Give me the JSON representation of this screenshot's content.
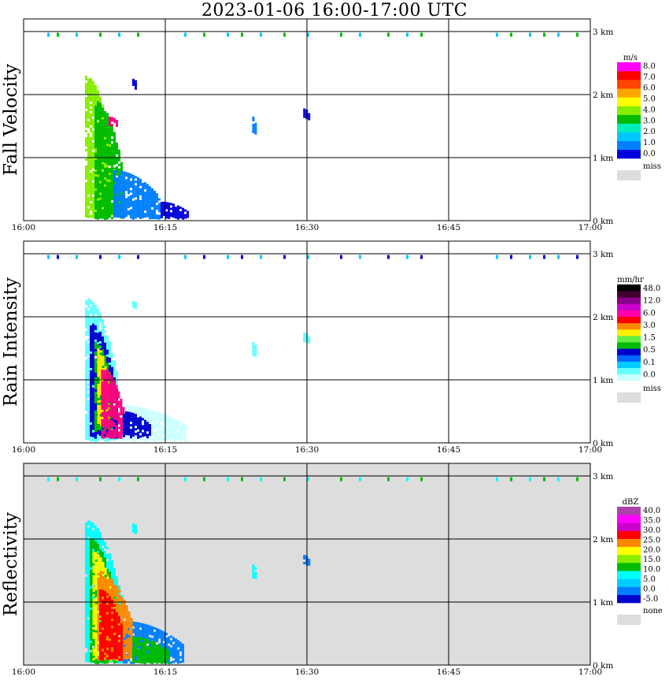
{
  "title": "2023-01-06  16:00-17:00 UTC",
  "chart_data": [
    {
      "type": "heatmap",
      "title": "Fall Velocity",
      "x_ticks": [
        "16:00",
        "16:15",
        "16:30",
        "16:45",
        "17:00"
      ],
      "y_ticks": [
        "0 km",
        "1 km",
        "2 km",
        "3 km"
      ],
      "ylim": [
        0,
        3
      ],
      "background": "#ffffff",
      "colorbar": {
        "unit": "m/s",
        "colors": [
          "#0000dd",
          "#0080ff",
          "#00c8ff",
          "#00eebb",
          "#00bb00",
          "#88ee00",
          "#ffff00",
          "#ffa500",
          "#ff4400",
          "#ff0000",
          "#ff00ff"
        ],
        "labels": [
          "8.0",
          "7.0",
          "6.0",
          "5.0",
          "4.0",
          "3.0",
          "2.0",
          "1.0",
          "0.0"
        ],
        "miss_label": "miss",
        "miss_color": "#dddddd"
      },
      "echo_palette": [
        "#0000dd",
        "#0080ff",
        "#00c8ff",
        "#00bb00",
        "#88ee00",
        "#ff0080"
      ],
      "blobs": [
        {
          "x0": 6.5,
          "x1": 9.5,
          "y0": 0.05,
          "y1": 2.3,
          "c": 4
        },
        {
          "x0": 7.5,
          "x1": 10.5,
          "y0": 0.05,
          "y1": 1.9,
          "c": 3
        },
        {
          "x0": 9.5,
          "x1": 14.5,
          "y0": 0.05,
          "y1": 0.8,
          "c": 1
        },
        {
          "x0": 14.5,
          "x1": 17.3,
          "y0": 0.05,
          "y1": 0.3,
          "c": 0
        },
        {
          "x0": 9.0,
          "x1": 10.0,
          "y0": 1.5,
          "y1": 1.65,
          "c": 5
        },
        {
          "x0": 11.5,
          "x1": 12.0,
          "y0": 2.1,
          "y1": 2.25,
          "c": 0
        },
        {
          "x0": 24.2,
          "x1": 24.6,
          "y0": 1.4,
          "y1": 1.65,
          "c": 1
        },
        {
          "x0": 29.6,
          "x1": 30.2,
          "y0": 1.6,
          "y1": 1.78,
          "c": 0
        }
      ]
    },
    {
      "type": "heatmap",
      "title": "Rain Intensity",
      "x_ticks": [
        "16:00",
        "16:15",
        "16:30",
        "16:45",
        "17:00"
      ],
      "y_ticks": [
        "0 km",
        "1 km",
        "2 km",
        "3 km"
      ],
      "ylim": [
        0,
        3
      ],
      "background": "#ffffff",
      "colorbar": {
        "unit": "mm/hr",
        "colors": [
          "#ccffff",
          "#66ffff",
          "#00ccff",
          "#0066ff",
          "#0000cc",
          "#00bb00",
          "#66ee44",
          "#ffee00",
          "#ff8800",
          "#ff0000",
          "#ff00aa",
          "#cc00cc",
          "#880088",
          "#440033",
          "#000000"
        ],
        "labels": [
          "48.0",
          "12.0",
          "6.0",
          "3.0",
          "1.5",
          "0.5",
          "0.1",
          "0.0"
        ],
        "miss_label": "miss",
        "miss_color": "#dddddd"
      },
      "echo_palette": [
        "#ccffff",
        "#66ffff",
        "#00ccff",
        "#0000cc",
        "#00bb00",
        "#ffee00",
        "#ff0080"
      ],
      "blobs": [
        {
          "x0": 6.5,
          "x1": 10.0,
          "y0": 0.05,
          "y1": 2.3,
          "c": 1
        },
        {
          "x0": 10.0,
          "x1": 17.2,
          "y0": 0.05,
          "y1": 0.6,
          "c": 0
        },
        {
          "x0": 7.0,
          "x1": 9.8,
          "y0": 0.1,
          "y1": 1.9,
          "c": 3
        },
        {
          "x0": 7.5,
          "x1": 9.5,
          "y0": 0.2,
          "y1": 1.6,
          "c": 4
        },
        {
          "x0": 7.8,
          "x1": 9.0,
          "y0": 0.3,
          "y1": 1.5,
          "c": 5
        },
        {
          "x0": 8.2,
          "x1": 10.5,
          "y0": 0.1,
          "y1": 1.2,
          "c": 6
        },
        {
          "x0": 10.5,
          "x1": 13.5,
          "y0": 0.1,
          "y1": 0.5,
          "c": 3
        },
        {
          "x0": 11.5,
          "x1": 12.0,
          "y0": 2.15,
          "y1": 2.25,
          "c": 1
        },
        {
          "x0": 24.2,
          "x1": 24.6,
          "y0": 1.4,
          "y1": 1.6,
          "c": 1
        },
        {
          "x0": 29.6,
          "x1": 30.2,
          "y0": 1.6,
          "y1": 1.75,
          "c": 1
        }
      ]
    },
    {
      "type": "heatmap",
      "title": "Reflectivity",
      "x_ticks": [
        "16:00",
        "16:15",
        "16:30",
        "16:45",
        "17:00"
      ],
      "y_ticks": [
        "0 km",
        "1 km",
        "2 km",
        "3 km"
      ],
      "ylim": [
        0,
        3
      ],
      "background": "#dddddd",
      "colorbar": {
        "unit": "dBZ",
        "colors": [
          "#0000cc",
          "#0080ff",
          "#00ccff",
          "#00ffff",
          "#00bb00",
          "#88ee00",
          "#ffff00",
          "#ff8800",
          "#ff0000",
          "#cc00cc",
          "#ff00ff",
          "#aa44aa"
        ],
        "labels": [
          "40.0",
          "35.0",
          "30.0",
          "25.0",
          "20.0",
          "15.0",
          "10.0",
          "5.0",
          "0.0",
          "-5.0"
        ],
        "miss_label": "none",
        "miss_color": "#dddddd"
      },
      "echo_palette": [
        "#0000cc",
        "#0080ff",
        "#00ffff",
        "#00bb00",
        "#ffff00",
        "#ff8800",
        "#ff0000"
      ],
      "blobs": [
        {
          "x0": 6.5,
          "x1": 10.5,
          "y0": 0.05,
          "y1": 2.3,
          "c": 2
        },
        {
          "x0": 10.5,
          "x1": 17.0,
          "y0": 0.05,
          "y1": 0.7,
          "c": 1
        },
        {
          "x0": 7.0,
          "x1": 10.0,
          "y0": 0.05,
          "y1": 2.0,
          "c": 3
        },
        {
          "x0": 7.3,
          "x1": 9.8,
          "y0": 0.1,
          "y1": 1.8,
          "c": 4
        },
        {
          "x0": 7.8,
          "x1": 11.5,
          "y0": 0.1,
          "y1": 1.5,
          "c": 5
        },
        {
          "x0": 8.0,
          "x1": 10.5,
          "y0": 0.1,
          "y1": 1.2,
          "c": 6
        },
        {
          "x0": 11.5,
          "x1": 15.5,
          "y0": 0.05,
          "y1": 0.45,
          "c": 3
        },
        {
          "x0": 11.5,
          "x1": 12.0,
          "y0": 2.1,
          "y1": 2.25,
          "c": 2
        },
        {
          "x0": 24.2,
          "x1": 24.6,
          "y0": 1.4,
          "y1": 1.6,
          "c": 2
        },
        {
          "x0": 29.6,
          "x1": 30.2,
          "y0": 1.6,
          "y1": 1.75,
          "c": 1
        }
      ]
    }
  ]
}
